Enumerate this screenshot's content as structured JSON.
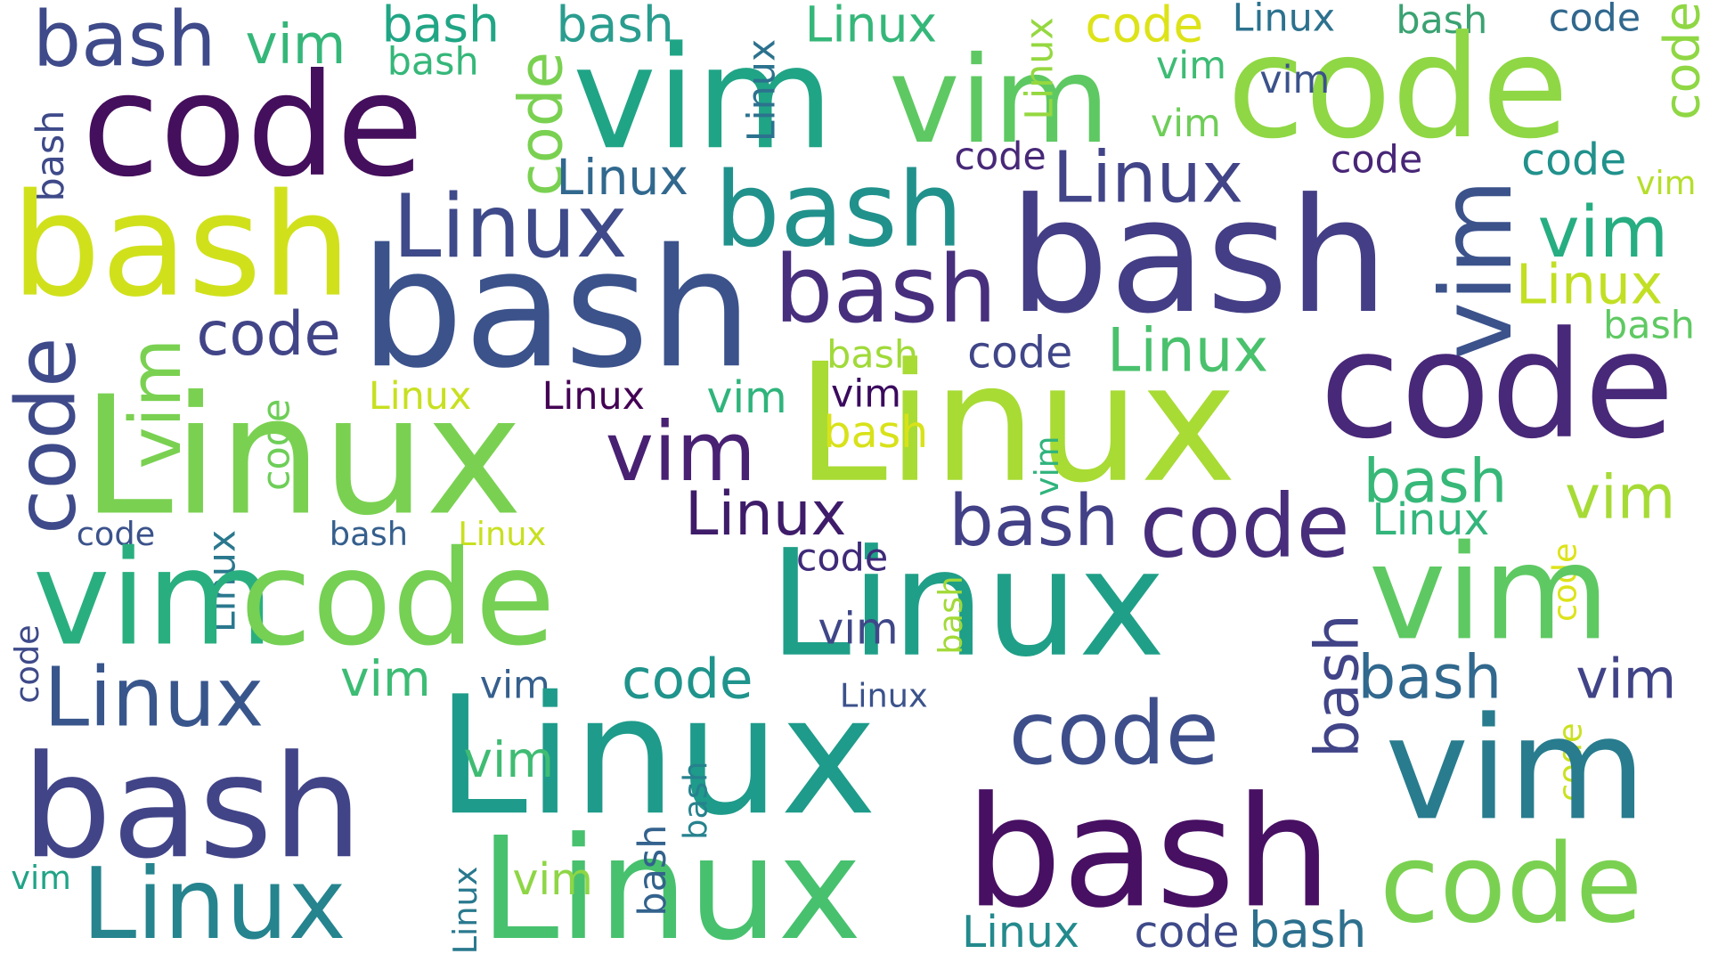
{
  "words": [
    {
      "text": "bash",
      "color": "#3e4a89"
    },
    {
      "text": "vim",
      "color": "#35b779"
    },
    {
      "text": "bash",
      "color": "#21a685"
    },
    {
      "text": "bash",
      "color": "#2a9d8f"
    },
    {
      "text": "Linux",
      "color": "#35b779"
    },
    {
      "text": "code",
      "color": "#dde318"
    },
    {
      "text": "Linux",
      "color": "#2c728e"
    },
    {
      "text": "bash",
      "color": "#3ba272"
    },
    {
      "text": "code",
      "color": "#31688e"
    },
    {
      "text": "code",
      "color": "#8fd744"
    },
    {
      "text": "code",
      "color": "#440f5c"
    },
    {
      "text": "vim",
      "color": "#20a486"
    },
    {
      "text": "vim",
      "color": "#5ec962"
    },
    {
      "text": "Linux",
      "color": "#2c728e"
    },
    {
      "text": "Linux",
      "color": "#95d840"
    },
    {
      "text": "code",
      "color": "#8fd744"
    },
    {
      "text": "vim",
      "color": "#3dbc74"
    },
    {
      "text": "vim",
      "color": "#3b528b"
    },
    {
      "text": "vim",
      "color": "#6ece58"
    },
    {
      "text": "bash",
      "color": "#35b779"
    },
    {
      "text": "code",
      "color": "#7ad151"
    },
    {
      "text": "bash",
      "color": "#3e4a89"
    },
    {
      "text": "Linux",
      "color": "#31688e"
    },
    {
      "text": "bash",
      "color": "#21918c"
    },
    {
      "text": "code",
      "color": "#482878"
    },
    {
      "text": "code",
      "color": "#482677"
    },
    {
      "text": "Linux",
      "color": "#414487"
    },
    {
      "text": "code",
      "color": "#21918c"
    },
    {
      "text": "vim",
      "color": "#b5de2b"
    },
    {
      "text": "vim",
      "color": "#3b528b"
    },
    {
      "text": "bash",
      "color": "#d0e11c"
    },
    {
      "text": "Linux",
      "color": "#3e4a89"
    },
    {
      "text": "bash",
      "color": "#3b528b"
    },
    {
      "text": "bash",
      "color": "#472f7d"
    },
    {
      "text": "bash",
      "color": "#433e85"
    },
    {
      "text": "vim",
      "color": "#26ad81"
    },
    {
      "text": "Linux",
      "color": "#c2df23"
    },
    {
      "text": "bash",
      "color": "#5ec962"
    },
    {
      "text": "code",
      "color": "#3e4a89"
    },
    {
      "text": "vim",
      "color": "#7ad151"
    },
    {
      "text": "code",
      "color": "#414487"
    },
    {
      "text": "code",
      "color": "#6ece58"
    },
    {
      "text": "bash",
      "color": "#a0da39"
    },
    {
      "text": "code",
      "color": "#404688"
    },
    {
      "text": "Linux",
      "color": "#4ac16d"
    },
    {
      "text": "code",
      "color": "#482878"
    },
    {
      "text": "Linux",
      "color": "#7ad151"
    },
    {
      "text": "Linux",
      "color": "#c8e020"
    },
    {
      "text": "Linux",
      "color": "#440154"
    },
    {
      "text": "vim",
      "color": "#2fb47c"
    },
    {
      "text": "vim",
      "color": "#3a0a5e"
    },
    {
      "text": "vim",
      "color": "#482173"
    },
    {
      "text": "Linux",
      "color": "#a8db34"
    },
    {
      "text": "bash",
      "color": "#d8e219"
    },
    {
      "text": "vim",
      "color": "#2fb47c"
    },
    {
      "text": "bash",
      "color": "#37b878"
    },
    {
      "text": "Linux",
      "color": "#33b57b"
    },
    {
      "text": "vim",
      "color": "#a6db35"
    },
    {
      "text": "Linux",
      "color": "#3e1c6a"
    },
    {
      "text": "bash",
      "color": "#424086"
    },
    {
      "text": "code",
      "color": "#472d7b"
    },
    {
      "text": "code",
      "color": "#3b528b"
    },
    {
      "text": "bash",
      "color": "#355f8d"
    },
    {
      "text": "Linux",
      "color": "#c8e020"
    },
    {
      "text": "Linux",
      "color": "#2a788e"
    },
    {
      "text": "code",
      "color": "#dde318"
    },
    {
      "text": "vim",
      "color": "#29af7f"
    },
    {
      "text": "code",
      "color": "#75d054"
    },
    {
      "text": "Linux",
      "color": "#1f9f88"
    },
    {
      "text": "code",
      "color": "#3f2a79"
    },
    {
      "text": "vim",
      "color": "#5ec962"
    },
    {
      "text": "bash",
      "color": "#a2da37"
    },
    {
      "text": "vim",
      "color": "#3f4788"
    },
    {
      "text": "bash",
      "color": "#414487"
    },
    {
      "text": "code",
      "color": "#3e4a89"
    },
    {
      "text": "Linux",
      "color": "#39568c"
    },
    {
      "text": "vim",
      "color": "#3dbc74"
    },
    {
      "text": "vim",
      "color": "#355f8d"
    },
    {
      "text": "code",
      "color": "#1f948c"
    },
    {
      "text": "Linux",
      "color": "#3b528b"
    },
    {
      "text": "code",
      "color": "#3d4e8a"
    },
    {
      "text": "bash",
      "color": "#31688e"
    },
    {
      "text": "vim",
      "color": "#404387"
    },
    {
      "text": "bash",
      "color": "#414487"
    },
    {
      "text": "Linux",
      "color": "#1e9b8a"
    },
    {
      "text": "vim",
      "color": "#3fbc73"
    },
    {
      "text": "bash",
      "color": "#26828e"
    },
    {
      "text": "code",
      "color": "#cae11f"
    },
    {
      "text": "vim",
      "color": "#287c8e"
    },
    {
      "text": "bash",
      "color": "#471063"
    },
    {
      "text": "Linux",
      "color": "#25848e"
    },
    {
      "text": "Linux",
      "color": "#47c16e"
    },
    {
      "text": "vim",
      "color": "#8ed645"
    },
    {
      "text": "vim",
      "color": "#20a386"
    },
    {
      "text": "Linux",
      "color": "#29798e"
    },
    {
      "text": "bash",
      "color": "#33628d"
    },
    {
      "text": "code",
      "color": "#7ad151"
    },
    {
      "text": "Linux",
      "color": "#238a8d"
    },
    {
      "text": "code",
      "color": "#3e4a89"
    },
    {
      "text": "bash",
      "color": "#2d708e"
    }
  ]
}
